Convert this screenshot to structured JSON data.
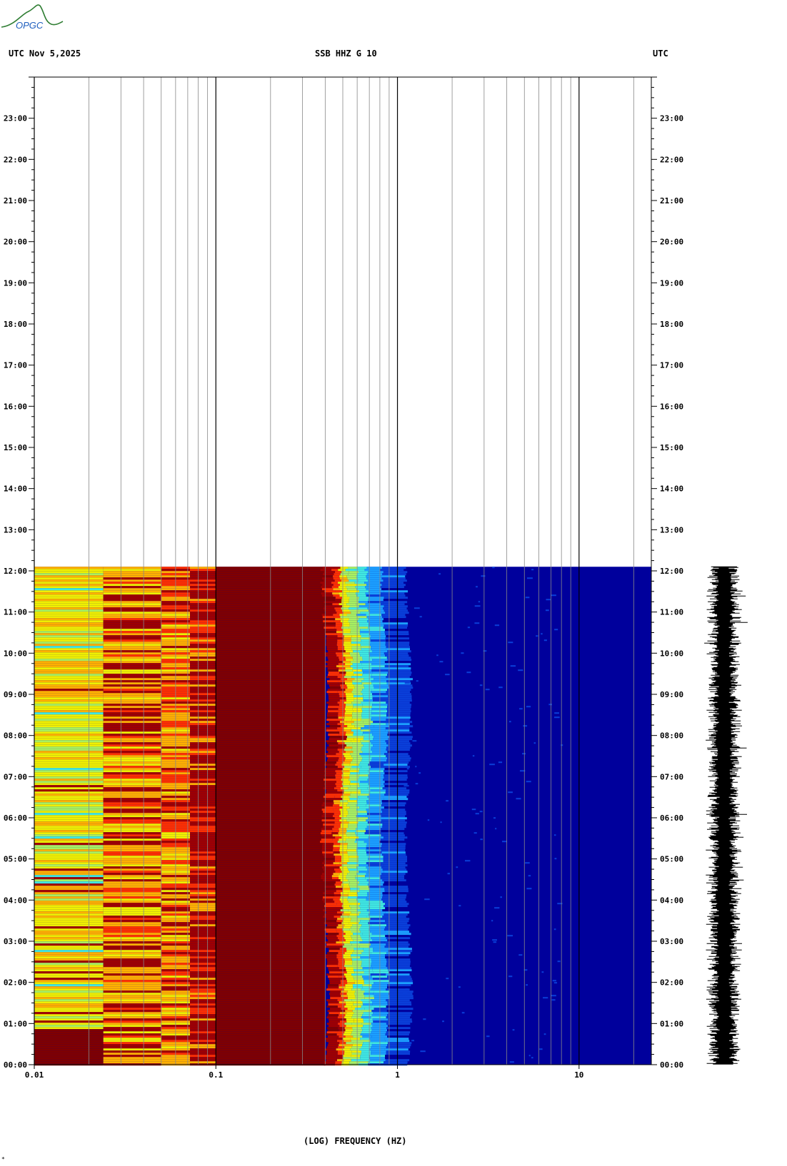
{
  "header": {
    "left": "UTC  Nov 5,2025",
    "center": "SSB HHZ G 10",
    "right": "UTC"
  },
  "logo": {
    "text": "OPGC",
    "color": "#2e7d32",
    "text_color": "#1f5fbf"
  },
  "chart_data": {
    "type": "heatmap",
    "title": "SSB HHZ G 10",
    "xlabel": "(LOG) FREQUENCY (HZ)",
    "x_scale": "log",
    "xlim": [
      0.01,
      25
    ],
    "x_ticks": [
      {
        "value": 0.01,
        "label": "0.01"
      },
      {
        "value": 0.1,
        "label": "0.1"
      },
      {
        "value": 1,
        "label": "1"
      },
      {
        "value": 10,
        "label": "10"
      }
    ],
    "ylabel": "UTC",
    "y_range_hours": [
      0,
      24
    ],
    "y_ticks": [
      "00:00",
      "01:00",
      "02:00",
      "03:00",
      "04:00",
      "05:00",
      "06:00",
      "07:00",
      "08:00",
      "09:00",
      "10:00",
      "11:00",
      "12:00",
      "13:00",
      "14:00",
      "15:00",
      "16:00",
      "17:00",
      "18:00",
      "19:00",
      "20:00",
      "21:00",
      "22:00",
      "23:00"
    ],
    "data_end_hour": 12.1,
    "colormap": [
      "#00009c",
      "#0a3fd9",
      "#1ca0ff",
      "#40e8e0",
      "#a8f060",
      "#f0f000",
      "#ffb000",
      "#ff3000",
      "#a00000",
      "#800000"
    ],
    "background": "#ffffff",
    "grid": true,
    "grid_color": "#888888"
  },
  "waveform": {
    "color": "#000000",
    "end_hour": 12.1
  },
  "footer_mark": "*"
}
